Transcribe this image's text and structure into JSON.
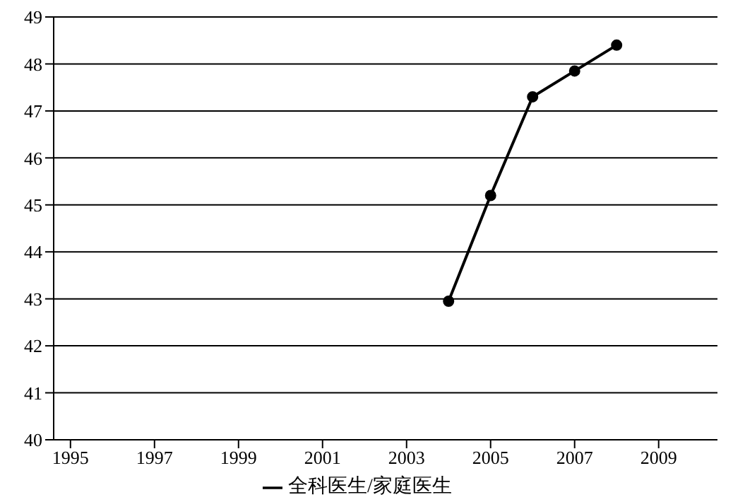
{
  "chart_data": {
    "type": "line",
    "x": [
      2004,
      2005,
      2006,
      2007,
      2008
    ],
    "series": [
      {
        "name": "全科医生/家庭医生",
        "color": "#000000",
        "values": [
          42.95,
          45.2,
          47.3,
          47.85,
          48.4
        ]
      }
    ],
    "xlim": [
      1994.6,
      2010.4
    ],
    "xticks": [
      1995,
      1997,
      1999,
      2001,
      2003,
      2005,
      2007,
      2009
    ],
    "ylim": [
      40,
      49
    ],
    "yticks": [
      40,
      41,
      42,
      43,
      44,
      45,
      46,
      47,
      48,
      49
    ],
    "grid": "y",
    "legend": "bottom",
    "marker": "circle",
    "line_style": "solid"
  }
}
